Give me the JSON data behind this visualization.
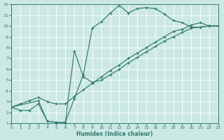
{
  "xlabel": "Humidex (Indice chaleur)",
  "bg_color": "#cce8e4",
  "line_color": "#2e7b6e",
  "grid_color": "#ffffff",
  "xlim": [
    0,
    23
  ],
  "ylim": [
    1,
    12
  ],
  "xticks": [
    0,
    1,
    2,
    3,
    4,
    5,
    6,
    7,
    8,
    9,
    10,
    11,
    12,
    13,
    14,
    15,
    16,
    17,
    18,
    19,
    20,
    21,
    22,
    23
  ],
  "yticks": [
    1,
    2,
    3,
    4,
    5,
    6,
    7,
    8,
    9,
    10,
    11,
    12
  ],
  "line1_x": [
    0,
    1,
    2,
    3,
    4,
    5,
    6,
    7,
    8,
    9,
    10,
    11,
    12,
    13,
    14,
    15,
    16,
    17,
    18,
    19,
    20,
    21,
    22,
    23
  ],
  "line1_y": [
    2.5,
    2.2,
    2.2,
    2.8,
    1.2,
    1.1,
    1.1,
    3.3,
    5.5,
    9.8,
    10.4,
    11.2,
    11.9,
    11.2,
    11.6,
    11.7,
    11.6,
    11.1,
    10.5,
    10.3,
    9.9,
    9.9,
    10.0,
    10.0
  ],
  "line2_x": [
    0,
    1,
    2,
    3,
    4,
    5,
    6,
    7,
    8,
    9,
    10,
    11,
    12,
    13,
    14,
    15,
    16,
    17,
    18,
    19,
    20,
    21,
    22,
    23
  ],
  "line2_y": [
    2.5,
    2.8,
    3.1,
    3.4,
    3.0,
    2.8,
    2.8,
    3.5,
    4.1,
    4.7,
    5.3,
    5.9,
    6.4,
    7.0,
    7.5,
    8.0,
    8.5,
    9.0,
    9.5,
    9.7,
    10.1,
    10.3,
    10.0,
    10.0
  ],
  "line3_x": [
    0,
    3,
    4,
    5,
    6,
    7,
    8,
    9,
    10,
    11,
    12,
    13,
    14,
    15,
    16,
    17,
    18,
    19,
    20,
    21,
    22,
    23
  ],
  "line3_y": [
    2.5,
    3.1,
    1.2,
    1.1,
    1.1,
    7.7,
    5.3,
    4.8,
    5.0,
    5.5,
    6.0,
    6.6,
    7.1,
    7.6,
    8.1,
    8.6,
    9.0,
    9.4,
    9.8,
    9.9,
    10.0,
    10.0
  ]
}
